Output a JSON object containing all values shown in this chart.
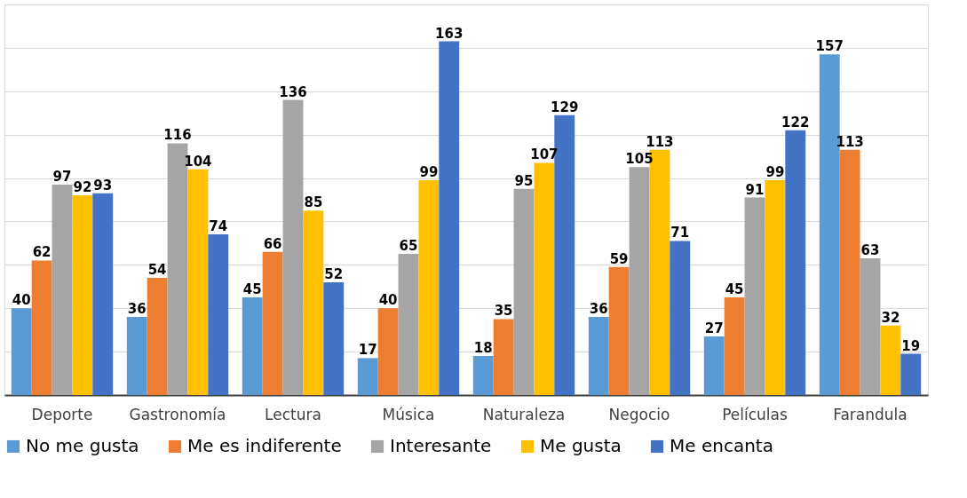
{
  "chart_data": {
    "type": "bar",
    "categories": [
      "Deporte",
      "Gastronomía",
      "Lectura",
      "Música",
      "Naturaleza",
      "Negocio",
      "Películas",
      "Farandula"
    ],
    "series": [
      {
        "name": "No me gusta",
        "color": "#5b9bd5",
        "values": [
          40,
          36,
          45,
          17,
          18,
          36,
          27,
          157
        ]
      },
      {
        "name": "Me es indiferente",
        "color": "#ed7d31",
        "values": [
          62,
          54,
          66,
          40,
          35,
          59,
          45,
          113
        ]
      },
      {
        "name": "Interesante",
        "color": "#a5a5a5",
        "values": [
          97,
          116,
          136,
          65,
          95,
          105,
          91,
          63
        ]
      },
      {
        "name": "Me gusta",
        "color": "#ffc000",
        "values": [
          92,
          104,
          85,
          99,
          107,
          113,
          99,
          32
        ]
      },
      {
        "name": "Me encanta",
        "color": "#4472c4",
        "values": [
          93,
          74,
          52,
          163,
          129,
          71,
          122,
          19
        ]
      }
    ],
    "ylim": [
      0,
      180
    ],
    "yticks": [
      {
        "value": 0,
        "label": null
      },
      {
        "value": 20,
        "label": null
      },
      {
        "value": 40,
        "label": null
      },
      {
        "value": 60,
        "label": null
      },
      {
        "value": 80,
        "label": null
      },
      {
        "value": 100,
        "label": null
      },
      {
        "value": 120,
        "label": null
      },
      {
        "value": 140,
        "label": null
      },
      {
        "value": 160,
        "label": null
      },
      {
        "value": 180,
        "label": null
      }
    ],
    "tick_labels": "x",
    "grid": "y",
    "legend": "bottom",
    "data_labels": true
  }
}
